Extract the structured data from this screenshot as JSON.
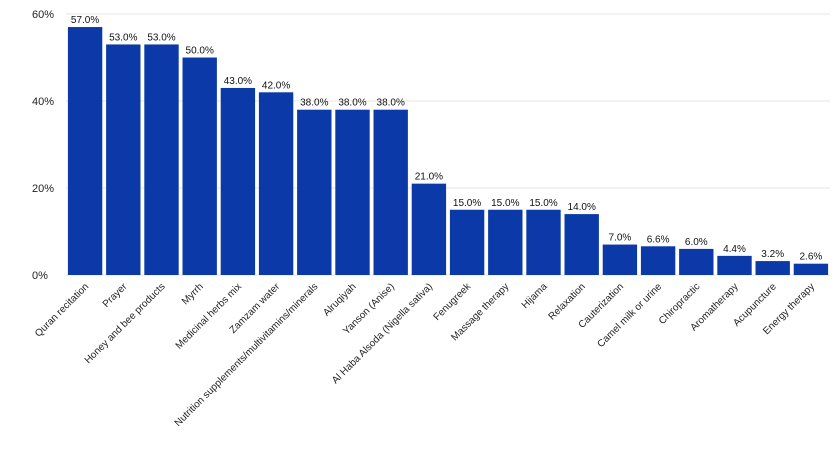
{
  "chart_data": {
    "type": "bar",
    "categories": [
      "Quran recitation",
      "Prayer",
      "Honey and bee products",
      "Myrrh",
      "Medicinal herbs mix",
      "Zamzam water",
      "Nutrition supplements/multivitamins/minerals",
      "Alruqiyah",
      "Yanson (Anise)",
      "Al Haba Alsoda (Nigella sativa)",
      "Fenugreek",
      "Massage therapy",
      "Hijama",
      "Relaxation",
      "Cauterization",
      "Camel milk or urine",
      "Chiropractic",
      "Aromatherapy",
      "Acupuncture",
      "Energy therapy"
    ],
    "values": [
      57.0,
      53.0,
      53.0,
      50.0,
      43.0,
      42.0,
      38.0,
      38.0,
      38.0,
      21.0,
      15.0,
      15.0,
      15.0,
      14.0,
      7.0,
      6.6,
      6.0,
      4.4,
      3.2,
      2.6
    ],
    "value_labels": [
      "57.0%",
      "53.0%",
      "53.0%",
      "50.0%",
      "43.0%",
      "42.0%",
      "38.0%",
      "38.0%",
      "38.0%",
      "21.0%",
      "15.0%",
      "15.0%",
      "15.0%",
      "14.0%",
      "7.0%",
      "6.6%",
      "6.0%",
      "4.4%",
      "3.2%",
      "2.6%"
    ],
    "y_ticks": [
      "0%",
      "20%",
      "40%",
      "60%"
    ],
    "y_tick_values": [
      0,
      20,
      40,
      60
    ],
    "ylim": [
      0,
      60
    ],
    "grid": true,
    "bar_color": "#0b3aa8",
    "grid_color": "#e6e6e6"
  }
}
